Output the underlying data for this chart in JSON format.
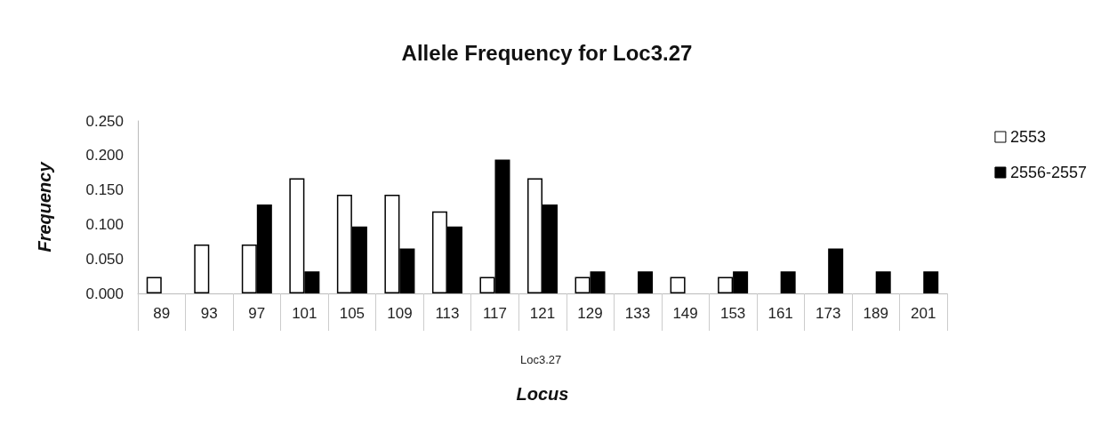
{
  "chart_data": {
    "type": "bar",
    "title": "Allele Frequency for Loc3.27",
    "xlabel": "Locus",
    "ylabel": "Frequency",
    "categories": [
      "89",
      "93",
      "97",
      "101",
      "105",
      "109",
      "113",
      "117",
      "121",
      "129",
      "133",
      "149",
      "153",
      "161",
      "173",
      "189",
      "201"
    ],
    "series": [
      {
        "name": "2553",
        "color": "#ffffff",
        "values": [
          0.024,
          0.071,
          0.071,
          0.167,
          0.143,
          0.143,
          0.119,
          0.024,
          0.167,
          0.024,
          0,
          0.024,
          0.024,
          0,
          0,
          0,
          0
        ]
      },
      {
        "name": "2556-2557",
        "color": "#000000",
        "values": [
          0,
          0,
          0.129,
          0.032,
          0.097,
          0.065,
          0.097,
          0.194,
          0.129,
          0.032,
          0.032,
          0,
          0.032,
          0.032,
          0.065,
          0.032,
          0.032
        ]
      }
    ],
    "annotations": [
      "Loc3.27"
    ],
    "ylim": [
      0,
      0.25
    ],
    "yticks": [
      {
        "value": 0,
        "label": "0.000"
      },
      {
        "value": 0.05,
        "label": "0.050"
      },
      {
        "value": 0.1,
        "label": "0.100"
      },
      {
        "value": 0.15,
        "label": "0.150"
      },
      {
        "value": 0.2,
        "label": "0.200"
      },
      {
        "value": 0.25,
        "label": "0.250"
      }
    ],
    "grid": false,
    "legend": "right"
  }
}
